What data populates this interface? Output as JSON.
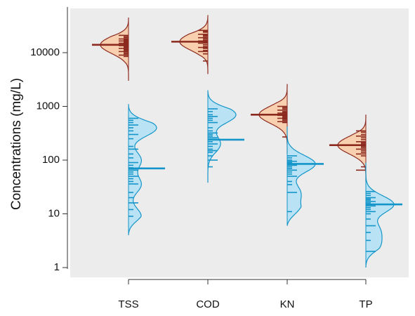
{
  "chart_data": {
    "type": "beanplot",
    "title": "",
    "xlabel": "",
    "ylabel": "Concentrations (mg/L)",
    "y_scale": "log10",
    "ylim": [
      1,
      50000
    ],
    "y_ticks": [
      1,
      10,
      100,
      1000,
      10000
    ],
    "y_tick_labels": [
      "1",
      "10",
      "100",
      "1000",
      "10000"
    ],
    "categories": [
      "TSS",
      "COD",
      "KN",
      "TP"
    ],
    "grid": false,
    "legend": "none",
    "colors": {
      "panel_bg": "#ececec",
      "series_1_fill": "#f8d0b0",
      "series_1_line": "#8c2a20",
      "series_2_fill": "#b9e3f4",
      "series_2_line": "#1495c9"
    },
    "series": [
      {
        "side": "left",
        "color_key": "series_1",
        "beans": [
          {
            "category": "TSS",
            "mean": 14000,
            "range": [
              3000,
              45000
            ],
            "peak": 14000,
            "observations": [
              21000,
              20000,
              19000,
              18000,
              17500,
              17000,
              16500,
              16000,
              15500,
              15000,
              14500,
              14000,
              13500,
              13000,
              12500,
              12000,
              11500,
              11000,
              10500,
              10000,
              9500,
              9000,
              8500
            ]
          },
          {
            "category": "COD",
            "mean": 16000,
            "range": [
              4000,
              50000
            ],
            "peak": 16000,
            "observations": [
              26000,
              25000,
              24000,
              22000,
              21000,
              20000,
              19000,
              18000,
              17000,
              16500,
              16000,
              15500,
              15000,
              14000,
              13000,
              12500,
              12000,
              11000,
              10500,
              9500,
              7000
            ]
          },
          {
            "category": "KN",
            "mean": 700,
            "range": [
              130,
              2600
            ],
            "peak": 700,
            "observations": [
              1000,
              950,
              900,
              850,
              800,
              780,
              750,
              720,
              700,
              680,
              650,
              620,
              600,
              580,
              550,
              520,
              500,
              270
            ]
          },
          {
            "category": "TP",
            "mean": 190,
            "range": [
              40,
              700
            ],
            "peak": 190,
            "observations": [
              350,
              330,
              300,
              280,
              260,
              240,
              220,
              210,
              200,
              190,
              180,
              170,
              160,
              150,
              140,
              130,
              120,
              75,
              65
            ]
          }
        ]
      },
      {
        "side": "right",
        "color_key": "series_2",
        "beans": [
          {
            "category": "TSS",
            "mean": 70,
            "range": [
              4,
              1100
            ],
            "peaks": [
              400,
              100,
              35,
              9
            ],
            "observations": [
              600,
              550,
              500,
              450,
              400,
              350,
              300,
              250,
              180,
              160,
              130,
              110,
              90,
              80,
              72,
              65,
              60,
              55,
              50,
              45,
              40,
              36,
              25,
              20,
              16,
              12,
              9
            ]
          },
          {
            "category": "COD",
            "mean": 240,
            "range": [
              38,
              2000
            ],
            "peaks": [
              700,
              200
            ],
            "observations": [
              900,
              800,
              700,
              650,
              600,
              550,
              500,
              400,
              350,
              320,
              300,
              280,
              260,
              240,
              220,
              200,
              180,
              160,
              150,
              140,
              120,
              100,
              75
            ]
          },
          {
            "category": "KN",
            "mean": 85,
            "range": [
              6,
              420
            ],
            "peaks": [
              85,
              25,
              11
            ],
            "observations": [
              120,
              110,
              100,
              95,
              90,
              85,
              80,
              75,
              70,
              65,
              60,
              55,
              50,
              40,
              35,
              25,
              11
            ]
          },
          {
            "category": "TP",
            "mean": 15,
            "range": [
              1,
              90
            ],
            "peaks": [
              15,
              5,
              2.5
            ],
            "observations": [
              26,
              24,
              22,
              20,
              19,
              18,
              17,
              16,
              15,
              14,
              13,
              12,
              11,
              10,
              8,
              6,
              4.5,
              3.2,
              2
            ]
          }
        ]
      }
    ]
  }
}
